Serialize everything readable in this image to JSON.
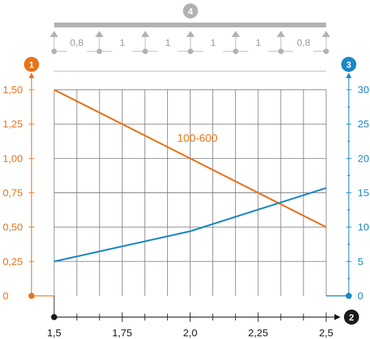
{
  "beam": {
    "marker": "4",
    "spans": [
      "0,8",
      "1",
      "1",
      "1",
      "1",
      "0,8"
    ]
  },
  "markers": {
    "left_axis": "1",
    "x_axis": "2",
    "right_axis": "3"
  },
  "colors": {
    "left": "#e8731c",
    "right": "#1a87c4",
    "axis": "#1a1a1a",
    "grid": "#777777",
    "beam": "#b2b2b2"
  },
  "chart_data": {
    "type": "line",
    "x": [
      1.5,
      1.75,
      2.0,
      2.25,
      2.5
    ],
    "x_tick_labels": [
      "1,5",
      "1,75",
      "2,0",
      "2,25",
      "2,5"
    ],
    "xlim": [
      1.5,
      2.5
    ],
    "grid": true,
    "y_left": {
      "ylim": [
        0,
        1.5
      ],
      "tick_values": [
        0,
        0.25,
        0.5,
        0.75,
        1.0,
        1.25,
        1.5
      ],
      "tick_labels": [
        "0",
        "0,25",
        "0,50",
        "0,75",
        "1,00",
        "1,25",
        "1,50"
      ]
    },
    "y_right": {
      "ylim": [
        0,
        30
      ],
      "tick_values": [
        0,
        5,
        10,
        15,
        20,
        25,
        30
      ],
      "tick_labels": [
        "0",
        "5",
        "10",
        "15",
        "20",
        "25",
        "30"
      ]
    },
    "series": [
      {
        "name": "100-600",
        "axis": "left",
        "color": "#e8731c",
        "points": [
          [
            1.5,
            1.5
          ],
          [
            2.5,
            0.5
          ]
        ]
      },
      {
        "axis": "right",
        "color": "#1a87c4",
        "points": [
          [
            1.5,
            5
          ],
          [
            2.0,
            9.4
          ],
          [
            2.5,
            15.7
          ]
        ]
      }
    ]
  }
}
